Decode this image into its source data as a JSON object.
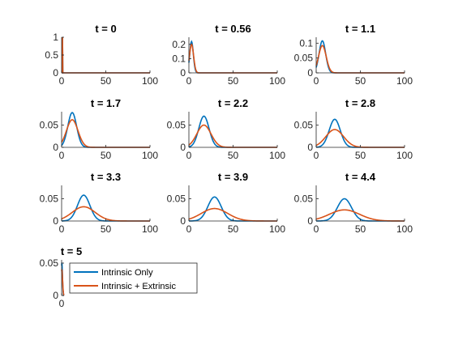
{
  "colors": {
    "intrinsic_only": "#0072BD",
    "intrinsic_extrinsic": "#D95319",
    "axis": "#262626"
  },
  "legend": {
    "entries": [
      "Intrinsic Only",
      "Intrinsic + Extrinsic"
    ],
    "placement": "inside-bottom-right of last panel"
  },
  "chart_data": [
    {
      "type": "line",
      "title": "t = 0",
      "xlim": [
        0,
        100
      ],
      "ylim": [
        0,
        1
      ],
      "yticks": [
        0,
        0.5,
        1
      ],
      "ytick_labels": [
        "0",
        "0.5",
        "1"
      ],
      "xticks": [
        0,
        50,
        100
      ],
      "series": [
        {
          "name": "Intrinsic Only",
          "kind": "spike",
          "x": 1,
          "peak": 1
        },
        {
          "name": "Intrinsic + Extrinsic",
          "kind": "spike",
          "x": 1,
          "peak": 1
        }
      ]
    },
    {
      "type": "line",
      "title": "t = 0.56",
      "xlim": [
        0,
        100
      ],
      "ylim": [
        0,
        0.25
      ],
      "yticks": [
        0,
        0.1,
        0.2
      ],
      "ytick_labels": [
        "0",
        "0.1",
        "0.2"
      ],
      "xticks": [
        0,
        50,
        100
      ],
      "series": [
        {
          "name": "Intrinsic Only",
          "kind": "peak",
          "mean": 3,
          "sd": 2,
          "peak": 0.22
        },
        {
          "name": "Intrinsic + Extrinsic",
          "kind": "peak",
          "mean": 3,
          "sd": 2.3,
          "peak": 0.2
        }
      ]
    },
    {
      "type": "line",
      "title": "t = 1.1",
      "xlim": [
        0,
        100
      ],
      "ylim": [
        0,
        0.12
      ],
      "yticks": [
        0,
        0.05,
        0.1
      ],
      "ytick_labels": [
        "0",
        "0.05",
        "0.1"
      ],
      "xticks": [
        0,
        50,
        100
      ],
      "series": [
        {
          "name": "Intrinsic Only",
          "kind": "peak",
          "mean": 7,
          "sd": 3.7,
          "peak": 0.108
        },
        {
          "name": "Intrinsic + Extrinsic",
          "kind": "peak",
          "mean": 7,
          "sd": 4.3,
          "peak": 0.092
        }
      ]
    },
    {
      "type": "line",
      "title": "t = 1.7",
      "xlim": [
        0,
        100
      ],
      "ylim": [
        0,
        0.08
      ],
      "yticks": [
        0,
        0.05
      ],
      "ytick_labels": [
        "0",
        "0.05"
      ],
      "xticks": [
        0,
        50,
        100
      ],
      "series": [
        {
          "name": "Intrinsic Only",
          "kind": "peak",
          "mean": 12,
          "sd": 5,
          "peak": 0.078
        },
        {
          "name": "Intrinsic + Extrinsic",
          "kind": "peak",
          "mean": 12,
          "sd": 6.5,
          "peak": 0.062
        }
      ]
    },
    {
      "type": "line",
      "title": "t = 2.2",
      "xlim": [
        0,
        100
      ],
      "ylim": [
        0,
        0.08
      ],
      "yticks": [
        0,
        0.05
      ],
      "ytick_labels": [
        "0",
        "0.05"
      ],
      "xticks": [
        0,
        50,
        100
      ],
      "series": [
        {
          "name": "Intrinsic Only",
          "kind": "peak",
          "mean": 17,
          "sd": 5.8,
          "peak": 0.07
        },
        {
          "name": "Intrinsic + Extrinsic",
          "kind": "peak",
          "mean": 17,
          "sd": 8,
          "peak": 0.05
        }
      ]
    },
    {
      "type": "line",
      "title": "t = 2.8",
      "xlim": [
        0,
        100
      ],
      "ylim": [
        0,
        0.08
      ],
      "yticks": [
        0,
        0.05
      ],
      "ytick_labels": [
        "0",
        "0.05"
      ],
      "xticks": [
        0,
        50,
        100
      ],
      "series": [
        {
          "name": "Intrinsic Only",
          "kind": "peak",
          "mean": 21,
          "sd": 6.3,
          "peak": 0.063
        },
        {
          "name": "Intrinsic + Extrinsic",
          "kind": "peak",
          "mean": 21,
          "sd": 10,
          "peak": 0.04
        }
      ]
    },
    {
      "type": "line",
      "title": "t = 3.3",
      "xlim": [
        0,
        100
      ],
      "ylim": [
        0,
        0.08
      ],
      "yticks": [
        0,
        0.05
      ],
      "ytick_labels": [
        "0",
        "0.05"
      ],
      "xticks": [
        0,
        50,
        100
      ],
      "series": [
        {
          "name": "Intrinsic Only",
          "kind": "peak",
          "mean": 25,
          "sd": 7,
          "peak": 0.058
        },
        {
          "name": "Intrinsic + Extrinsic",
          "kind": "peak",
          "mean": 25,
          "sd": 13,
          "peak": 0.032
        }
      ]
    },
    {
      "type": "line",
      "title": "t = 3.9",
      "xlim": [
        0,
        100
      ],
      "ylim": [
        0,
        0.08
      ],
      "yticks": [
        0,
        0.05
      ],
      "ytick_labels": [
        "0",
        "0.05"
      ],
      "xticks": [
        0,
        50,
        100
      ],
      "series": [
        {
          "name": "Intrinsic Only",
          "kind": "peak",
          "mean": 29,
          "sd": 7.5,
          "peak": 0.054
        },
        {
          "name": "Intrinsic + Extrinsic",
          "kind": "peak",
          "mean": 29,
          "sd": 15,
          "peak": 0.028
        }
      ]
    },
    {
      "type": "line",
      "title": "t = 4.4",
      "xlim": [
        0,
        100
      ],
      "ylim": [
        0,
        0.08
      ],
      "yticks": [
        0,
        0.05
      ],
      "ytick_labels": [
        "0",
        "0.05"
      ],
      "xticks": [
        0,
        50,
        100
      ],
      "series": [
        {
          "name": "Intrinsic Only",
          "kind": "peak",
          "mean": 32,
          "sd": 8,
          "peak": 0.05
        },
        {
          "name": "Intrinsic + Extrinsic",
          "kind": "peak",
          "mean": 32,
          "sd": 17,
          "peak": 0.025
        }
      ]
    },
    {
      "type": "line",
      "title": "t = 5",
      "xlim": [
        0,
        1
      ],
      "ylim": [
        0,
        0.055
      ],
      "yticks": [
        0,
        0.05
      ],
      "ytick_labels": [
        "0",
        "0.05"
      ],
      "xticks": [
        0
      ],
      "xtick_labels": [
        "0"
      ],
      "series": [
        {
          "name": "Intrinsic Only",
          "kind": "peak",
          "mean": 0.1,
          "sd": 0.25,
          "peak": 0.05
        },
        {
          "name": "Intrinsic + Extrinsic",
          "kind": "peak",
          "mean": 0.1,
          "sd": 0.3,
          "peak": 0.04
        }
      ]
    }
  ]
}
